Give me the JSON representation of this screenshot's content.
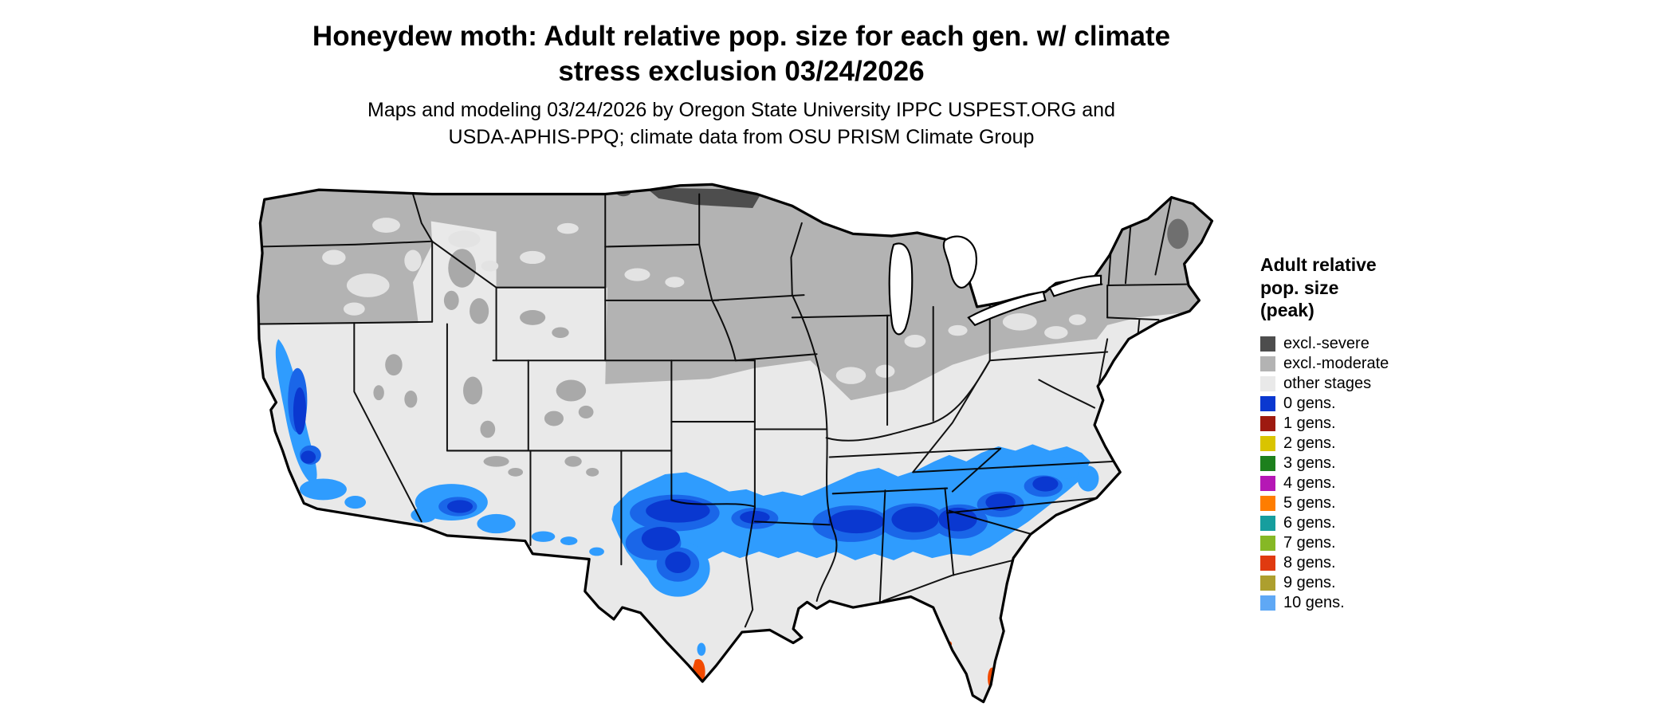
{
  "header": {
    "title_line1": "Honeydew moth: Adult relative pop. size for each gen. w/ climate",
    "title_line2": "stress exclusion 03/24/2026",
    "subtitle_line1": "Maps and modeling 03/24/2026 by Oregon State University IPPC USPEST.ORG and",
    "subtitle_line2": "USDA-APHIS-PPQ; climate data from OSU PRISM Climate Group"
  },
  "legend": {
    "title_line1": "Adult relative",
    "title_line2": "pop. size",
    "title_line3": "(peak)",
    "items": [
      {
        "label": "excl.-severe",
        "color": "#4d4d4d"
      },
      {
        "label": "excl.-moderate",
        "color": "#b3b3b3"
      },
      {
        "label": "other stages",
        "color": "#e9e9e9"
      },
      {
        "label": "0 gens.",
        "color": "#0a38d0"
      },
      {
        "label": "1 gens.",
        "color": "#9e1a10"
      },
      {
        "label": "2 gens.",
        "color": "#d9c400"
      },
      {
        "label": "3 gens.",
        "color": "#1d801d"
      },
      {
        "label": "4 gens.",
        "color": "#b517b5"
      },
      {
        "label": "5 gens.",
        "color": "#ff7d00"
      },
      {
        "label": "6 gens.",
        "color": "#169e9e"
      },
      {
        "label": "7 gens.",
        "color": "#86b825"
      },
      {
        "label": "8 gens.",
        "color": "#e03a10"
      },
      {
        "label": "9 gens.",
        "color": "#ad9f2e"
      },
      {
        "label": "10 gens.",
        "color": "#5fa8f5"
      }
    ]
  },
  "map_colors": {
    "band_fringe": "#2f9cfe",
    "band_mid": "#1a66e8",
    "hotspot": "#f24a00",
    "speckle_gray": "#a9a9a9",
    "speckle_light": "#e3e3e3",
    "maine_patch": "#6f6f6f",
    "boundary": "#000000"
  }
}
